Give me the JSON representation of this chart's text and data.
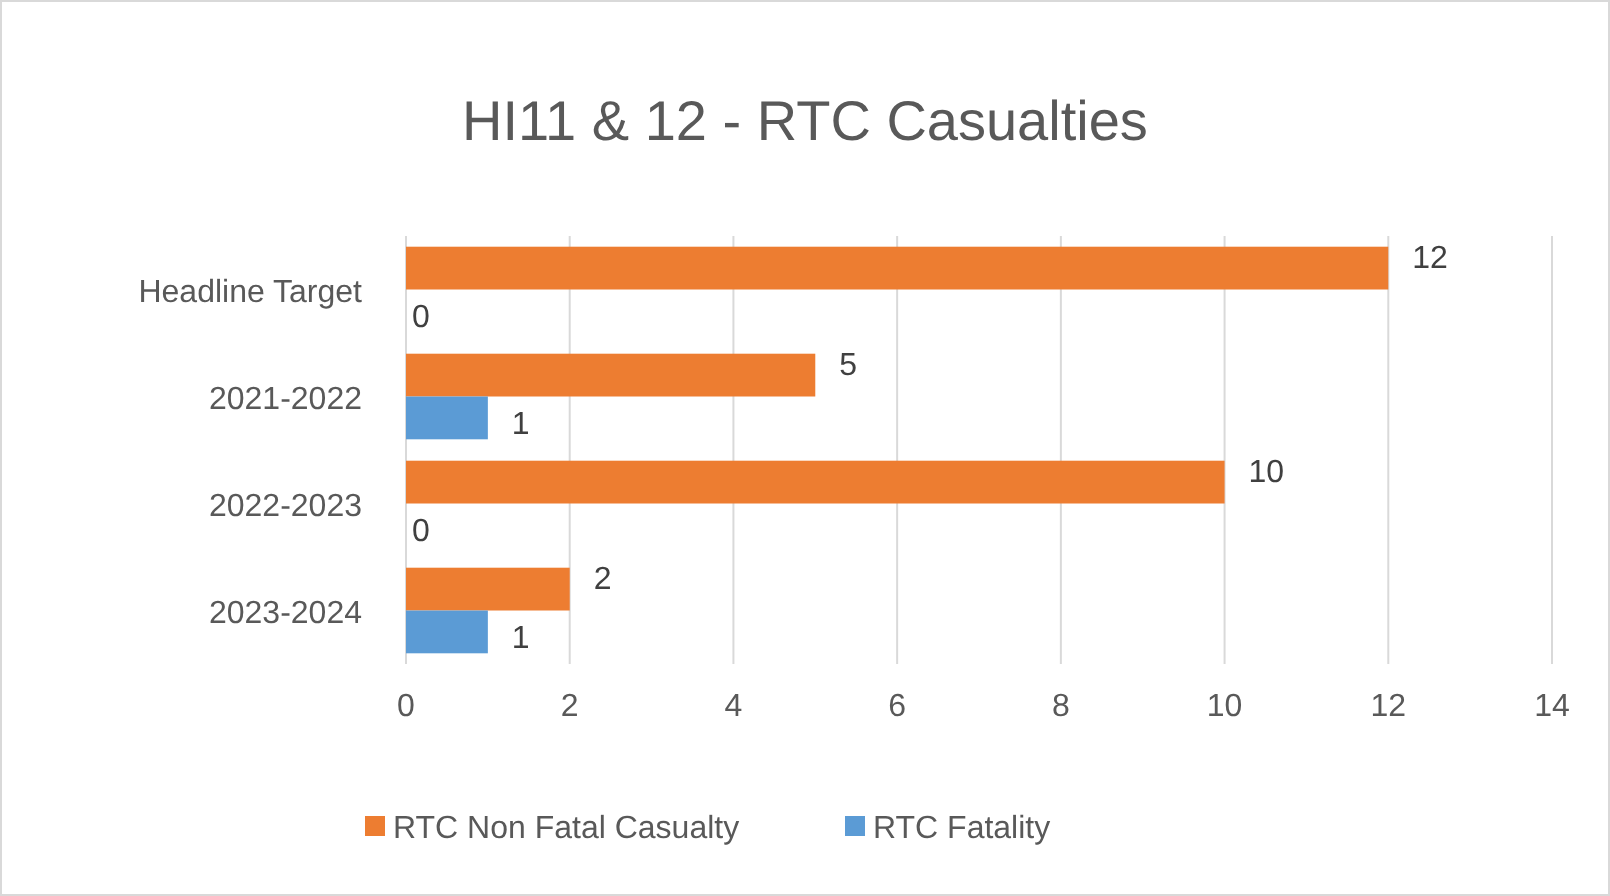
{
  "chart_data": {
    "type": "bar",
    "orientation": "horizontal",
    "title": "HI11 & 12 - RTC Casualties",
    "categories": [
      "Headline Target",
      "2021-2022",
      "2022-2023",
      "2023-2024"
    ],
    "series": [
      {
        "name": "RTC Non Fatal Casualty",
        "color": "#ed7d31",
        "values": [
          12,
          5,
          10,
          2
        ]
      },
      {
        "name": "RTC Fatality",
        "color": "#5b9bd5",
        "values": [
          0,
          1,
          0,
          1
        ]
      }
    ],
    "xlim": [
      0,
      14
    ],
    "xticks": [
      0,
      2,
      4,
      6,
      8,
      10,
      12,
      14
    ],
    "grid": "x",
    "legend": "bottom",
    "data_labels": true
  }
}
